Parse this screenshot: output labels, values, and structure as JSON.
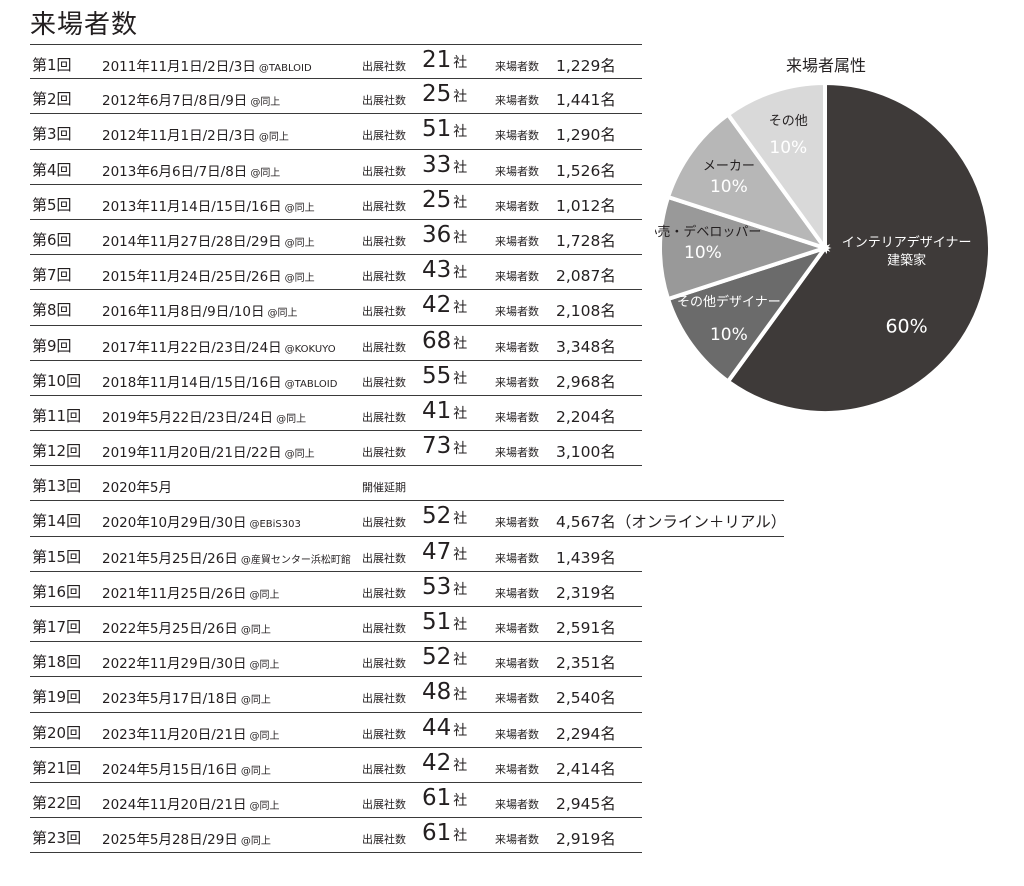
{
  "page_title": "来場者数",
  "table": {
    "labels": {
      "exhibitors": "出展社数",
      "visitors": "来場者数",
      "company_unit": "社"
    },
    "rows": [
      {
        "round": "第1回",
        "dates": "2011年11月1日/2日/3日",
        "venue": "@TABLOID",
        "exhibitors": "21",
        "visitors": "1,229名"
      },
      {
        "round": "第2回",
        "dates": "2012年6月7日/8日/9日",
        "venue": "@同上",
        "exhibitors": "25",
        "visitors": "1,441名"
      },
      {
        "round": "第3回",
        "dates": "2012年11月1日/2日/3日",
        "venue": "@同上",
        "exhibitors": "51",
        "visitors": "1,290名"
      },
      {
        "round": "第4回",
        "dates": "2013年6月6日/7日/8日",
        "venue": "@同上",
        "exhibitors": "33",
        "visitors": "1,526名"
      },
      {
        "round": "第5回",
        "dates": "2013年11月14日/15日/16日",
        "venue": "@同上",
        "exhibitors": "25",
        "visitors": "1,012名"
      },
      {
        "round": "第6回",
        "dates": "2014年11月27日/28日/29日",
        "venue": "@同上",
        "exhibitors": "36",
        "visitors": "1,728名"
      },
      {
        "round": "第7回",
        "dates": "2015年11月24日/25日/26日",
        "venue": "@同上",
        "exhibitors": "43",
        "visitors": "2,087名"
      },
      {
        "round": "第8回",
        "dates": "2016年11月8日/9日/10日",
        "venue": "@同上",
        "exhibitors": "42",
        "visitors": "2,108名"
      },
      {
        "round": "第9回",
        "dates": "2017年11月22日/23日/24日",
        "venue": "@KOKUYO",
        "exhibitors": "68",
        "visitors": "3,348名"
      },
      {
        "round": "第10回",
        "dates": "2018年11月14日/15日/16日",
        "venue": "@TABLOID",
        "exhibitors": "55",
        "visitors": "2,968名"
      },
      {
        "round": "第11回",
        "dates": "2019年5月22日/23日/24日",
        "venue": "@同上",
        "exhibitors": "41",
        "visitors": "2,204名"
      },
      {
        "round": "第12回",
        "dates": "2019年11月20日/21日/22日",
        "venue": "@同上",
        "exhibitors": "73",
        "visitors": "3,100名"
      },
      {
        "round": "第13回",
        "dates": "2020年5月",
        "note": "開催延期"
      },
      {
        "round": "第14回",
        "dates": "2020年10月29日/30日",
        "venue": "@EBiS303",
        "exhibitors": "52",
        "visitors": "4,567名（オンライン＋リアル）"
      },
      {
        "round": "第15回",
        "dates": "2021年5月25日/26日",
        "venue": "@産貿センター浜松町館",
        "exhibitors": "47",
        "visitors": "1,439名"
      },
      {
        "round": "第16回",
        "dates": "2021年11月25日/26日",
        "venue": "@同上",
        "exhibitors": "53",
        "visitors": "2,319名"
      },
      {
        "round": "第17回",
        "dates": "2022年5月25日/26日",
        "venue": "@同上",
        "exhibitors": "51",
        "visitors": "2,591名"
      },
      {
        "round": "第18回",
        "dates": "2022年11月29日/30日",
        "venue": "@同上",
        "exhibitors": "52",
        "visitors": "2,351名"
      },
      {
        "round": "第19回",
        "dates": "2023年5月17日/18日",
        "venue": "@同上",
        "exhibitors": "48",
        "visitors": "2,540名"
      },
      {
        "round": "第20回",
        "dates": "2023年11月20日/21日",
        "venue": "@同上",
        "exhibitors": "44",
        "visitors": "2,294名"
      },
      {
        "round": "第21回",
        "dates": "2024年5月15日/16日",
        "venue": "@同上",
        "exhibitors": "42",
        "visitors": "2,414名"
      },
      {
        "round": "第22回",
        "dates": "2024年11月20日/21日",
        "venue": "@同上",
        "exhibitors": "61",
        "visitors": "2,945名"
      },
      {
        "round": "第23回",
        "dates": "2025年5月28日/29日",
        "venue": "@同上",
        "exhibitors": "61",
        "visitors": "2,919名"
      }
    ]
  },
  "chart_data": {
    "type": "pie",
    "title": "来場者属性",
    "slices": [
      {
        "label": "インテリアデザイナー\n建築家",
        "value": 60,
        "display": "60%",
        "color": "#3e3a39",
        "text_color": "#ffffff"
      },
      {
        "label": "その他デザイナー",
        "value": 10,
        "display": "10%",
        "color": "#6b6b6b",
        "text_color": "#ffffff"
      },
      {
        "label": "小売・デベロッパー",
        "value": 10,
        "display": "10%",
        "color": "#999999",
        "text_color": "#231f20"
      },
      {
        "label": "メーカー",
        "value": 10,
        "display": "10%",
        "color": "#b7b7b7",
        "text_color": "#231f20"
      },
      {
        "label": "その他",
        "value": 10,
        "display": "10%",
        "color": "#d9d9d9",
        "text_color": "#231f20"
      }
    ]
  }
}
